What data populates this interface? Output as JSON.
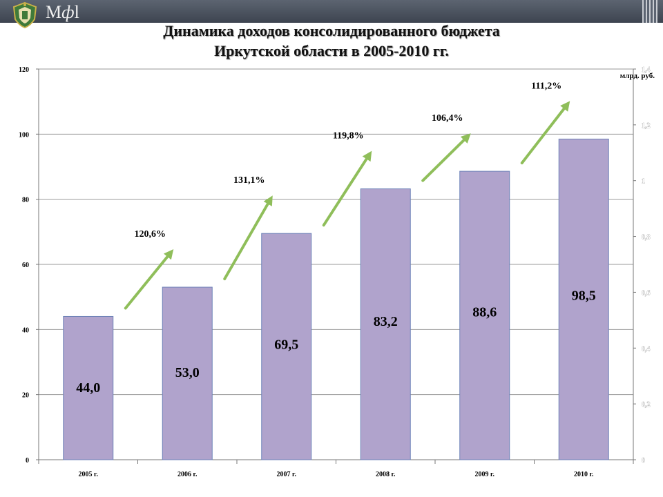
{
  "header": {
    "brand_prefix": "М",
    "brand_symbol": "ф",
    "brand_suffix": "l"
  },
  "title_lines": [
    "Динамика доходов консолидированного бюджета",
    "Иркутской области в 2005-2010 гг."
  ],
  "chart_data": {
    "type": "bar",
    "categories": [
      "2005 г.",
      "2006 г.",
      "2007 г.",
      "2008 г.",
      "2009 г.",
      "2010 г."
    ],
    "values": [
      44.0,
      53.0,
      69.5,
      83.2,
      88.6,
      98.5
    ],
    "data_labels": [
      "44,0",
      "53,0",
      "69,5",
      "83,2",
      "88,6",
      "98,5"
    ],
    "growth_labels": [
      "120,6%",
      "131,1%",
      "119,8%",
      "106,4%",
      "111,2%"
    ],
    "ylim": [
      0,
      120
    ],
    "yticks": [
      0,
      20,
      40,
      60,
      80,
      100,
      120
    ],
    "ylim_right": [
      0,
      1.4
    ],
    "yticks_right": [
      "0",
      "0,2",
      "0,4",
      "0,6",
      "0,8",
      "1",
      "1,2",
      "1,4"
    ],
    "unit_label": "млрд. руб.",
    "grid": true,
    "legend": "none",
    "colors": {
      "bar_fill": "#b0a3cc",
      "bar_stroke": "#6f83b8",
      "arrow": "#8fbe5a",
      "grid": "#9a9a9a"
    }
  }
}
